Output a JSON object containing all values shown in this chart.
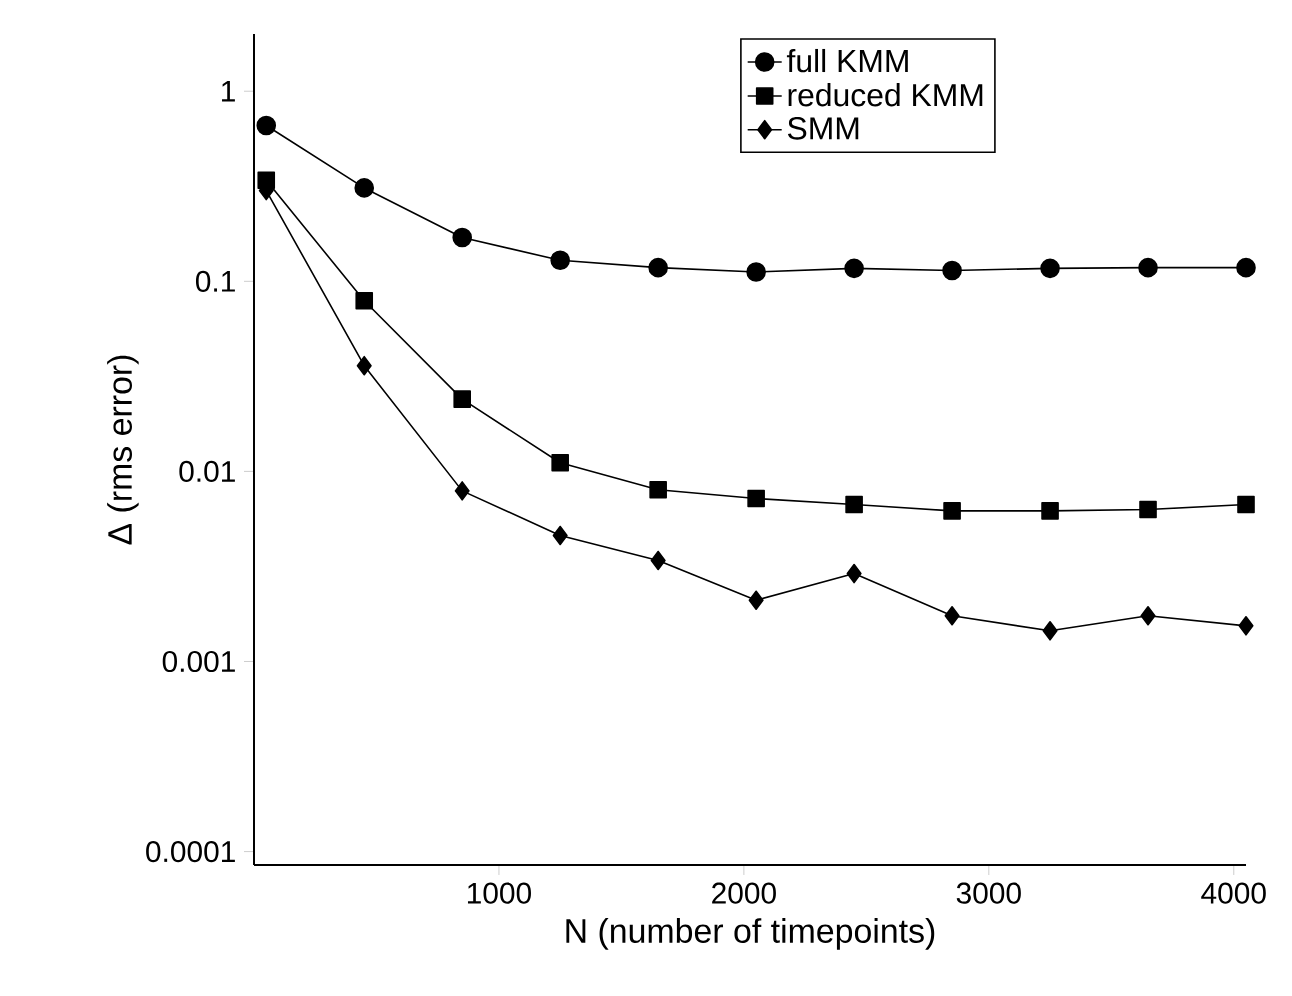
{
  "chart_data": {
    "type": "line",
    "xlabel": "N (number of timepoints)",
    "ylabel": "Δ (rms error)",
    "log": "y",
    "legend": "top right",
    "grid": false,
    "x": [
      50,
      450,
      850,
      1250,
      1650,
      2050,
      2450,
      2850,
      3250,
      3650,
      4050
    ],
    "xlim": [
      0,
      4050
    ],
    "xticks": [
      1000,
      2000,
      3000,
      4000
    ],
    "ylim": [
      8.5e-05,
      2
    ],
    "yticks": [
      1,
      0.1,
      0.01,
      0.001,
      0.0001
    ],
    "series": [
      {
        "name": "full KMM",
        "color": "#000000",
        "marker": "circle",
        "values": [
          0.66,
          0.31,
          0.17,
          0.129,
          0.118,
          0.112,
          0.117,
          0.114,
          0.117,
          0.118,
          0.118
        ]
      },
      {
        "name": "reduced KMM",
        "color": "#000000",
        "marker": "square",
        "values": [
          0.34,
          0.079,
          0.024,
          0.0111,
          0.008,
          0.0072,
          0.0067,
          0.0062,
          0.0062,
          0.0063,
          0.0067
        ]
      },
      {
        "name": "SMM",
        "color": "#000000",
        "marker": "diamond",
        "values": [
          0.3,
          0.036,
          0.0079,
          0.0046,
          0.0034,
          0.0021,
          0.0029,
          0.00174,
          0.00145,
          0.00174,
          0.00154
        ]
      }
    ]
  }
}
